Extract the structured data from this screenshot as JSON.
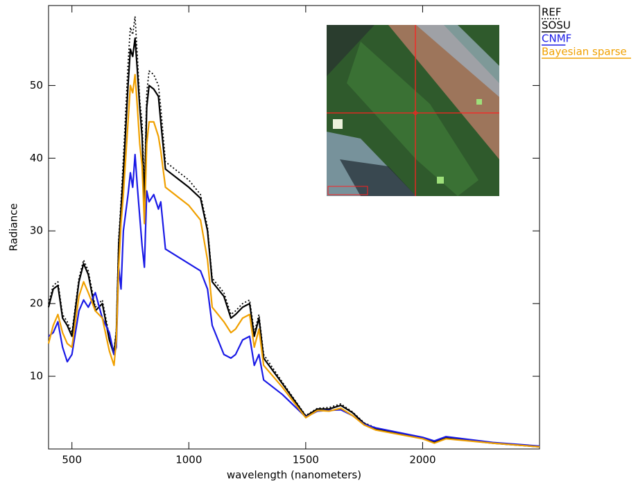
{
  "chart_data": {
    "type": "line",
    "x_label": "wavelength (nanometers)",
    "y_label": "Radiance",
    "x": [
      400,
      420,
      440,
      460,
      480,
      500,
      530,
      550,
      570,
      600,
      630,
      660,
      680,
      690,
      700,
      710,
      720,
      740,
      750,
      760,
      770,
      780,
      790,
      800,
      810,
      820,
      830,
      850,
      870,
      880,
      900,
      1000,
      1050,
      1080,
      1100,
      1150,
      1180,
      1200,
      1230,
      1260,
      1280,
      1300,
      1320,
      1400,
      1500,
      1550,
      1600,
      1650,
      1700,
      1750,
      1800,
      2000,
      2050,
      2100,
      2300,
      2500
    ],
    "series": [
      {
        "name": "REF",
        "color": "#000000",
        "line_style": "dotted",
        "values": [
          20,
          22.5,
          23,
          18.5,
          17.5,
          16,
          23.5,
          26,
          24.5,
          19.5,
          20.5,
          15.5,
          13.5,
          16.5,
          29,
          34,
          40,
          53,
          58,
          57,
          59.5,
          54,
          48,
          45,
          36,
          49,
          52,
          51.5,
          50,
          47,
          39.5,
          37,
          35,
          30.5,
          23.5,
          21.5,
          18.5,
          19,
          20,
          20.5,
          16,
          18.5,
          13,
          9.2,
          4.6,
          5.6,
          5.7,
          6.2,
          5.1,
          3.6,
          2.9,
          1.5,
          0.9,
          1.5,
          0.8,
          0.3
        ]
      },
      {
        "name": "SOSU",
        "color": "#000000",
        "line_style": "solid",
        "values": [
          19.5,
          22,
          22.5,
          18,
          17,
          15.5,
          23,
          25.5,
          24,
          19,
          20,
          15,
          13,
          16,
          28,
          33,
          38,
          50,
          55,
          54,
          56.5,
          52,
          47,
          43,
          34,
          47,
          50,
          49.5,
          48.5,
          45,
          38.5,
          36,
          34.5,
          30,
          23,
          21,
          18,
          18.5,
          19.5,
          20,
          15.5,
          18,
          12.5,
          9,
          4.5,
          5.5,
          5.5,
          6,
          5,
          3.5,
          2.8,
          1.5,
          0.9,
          1.5,
          0.8,
          0.3
        ]
      },
      {
        "name": "CNMF",
        "color": "#1a1ae6",
        "line_style": "solid",
        "values": [
          15.5,
          16,
          17.5,
          14,
          12,
          13,
          19,
          20.5,
          19.5,
          21.5,
          18,
          16,
          13,
          14,
          25,
          22,
          30,
          35,
          38,
          36,
          40.5,
          36,
          32,
          28,
          25,
          35.5,
          34,
          35,
          33,
          34,
          27.5,
          25.5,
          24.5,
          22,
          17,
          13,
          12.5,
          13,
          15,
          15.5,
          11.5,
          13,
          9.5,
          7.5,
          4.4,
          5.2,
          5.3,
          5.4,
          4.6,
          3.4,
          2.9,
          1.6,
          1.1,
          1.7,
          0.9,
          0.4
        ]
      },
      {
        "name": "Bayesian sparse",
        "color": "#f0a000",
        "line_style": "solid",
        "values": [
          14.5,
          17,
          18.5,
          16,
          14.5,
          14,
          21,
          23,
          21.5,
          19,
          18,
          13.5,
          11.5,
          15,
          25,
          31,
          35,
          45,
          50,
          49,
          51.5,
          47,
          42,
          39,
          31,
          42,
          45,
          45,
          43,
          41,
          36,
          33.5,
          31.5,
          26,
          19.5,
          17.5,
          16,
          16.5,
          18,
          18.5,
          14,
          16.5,
          11.5,
          8.5,
          4.3,
          5.3,
          5.2,
          5.6,
          4.6,
          3.3,
          2.6,
          1.4,
          0.8,
          1.4,
          0.8,
          0.3
        ]
      }
    ],
    "xlim": [
      400,
      2500
    ],
    "ylim": [
      0,
      61
    ],
    "xticks": [
      500,
      1000,
      1500,
      2000
    ],
    "yticks": [
      10,
      20,
      30,
      40,
      50
    ]
  }
}
